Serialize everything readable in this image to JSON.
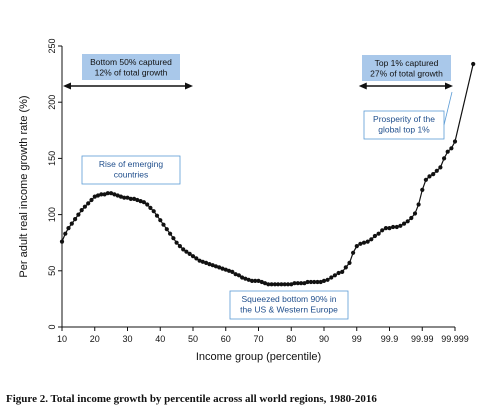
{
  "chart_data": {
    "type": "line",
    "xlabel": "Income group (percentile)",
    "ylabel": "Per adult real income growth rate (%)",
    "ylim": [
      0,
      250
    ],
    "yticks": [
      0,
      50,
      100,
      150,
      200,
      250
    ],
    "xticks": [
      "10",
      "20",
      "30",
      "40",
      "50",
      "60",
      "70",
      "80",
      "90",
      "99",
      "99.9",
      "99.99",
      "99.999"
    ],
    "grid": false,
    "series": [
      {
        "points": [
          [
            10,
            76
          ],
          [
            11,
            83
          ],
          [
            12,
            88
          ],
          [
            13,
            92
          ],
          [
            14,
            96
          ],
          [
            15,
            100
          ],
          [
            16,
            104
          ],
          [
            17,
            107
          ],
          [
            18,
            110
          ],
          [
            19,
            113
          ],
          [
            20,
            116
          ],
          [
            21,
            117
          ],
          [
            22,
            118
          ],
          [
            23,
            118
          ],
          [
            24,
            119
          ],
          [
            25,
            119
          ],
          [
            26,
            118
          ],
          [
            27,
            117
          ],
          [
            28,
            116
          ],
          [
            29,
            115
          ],
          [
            30,
            115
          ],
          [
            31,
            114
          ],
          [
            32,
            114
          ],
          [
            33,
            113
          ],
          [
            34,
            112
          ],
          [
            35,
            111
          ],
          [
            36,
            109
          ],
          [
            37,
            106
          ],
          [
            38,
            103
          ],
          [
            39,
            99
          ],
          [
            40,
            95
          ],
          [
            41,
            91
          ],
          [
            42,
            87
          ],
          [
            43,
            83
          ],
          [
            44,
            79
          ],
          [
            45,
            75
          ],
          [
            46,
            72
          ],
          [
            47,
            69
          ],
          [
            48,
            67
          ],
          [
            49,
            65
          ],
          [
            50,
            63
          ],
          [
            51,
            61
          ],
          [
            52,
            59
          ],
          [
            53,
            58
          ],
          [
            54,
            57
          ],
          [
            55,
            56
          ],
          [
            56,
            55
          ],
          [
            57,
            54
          ],
          [
            58,
            53
          ],
          [
            59,
            52
          ],
          [
            60,
            51
          ],
          [
            61,
            50
          ],
          [
            62,
            49
          ],
          [
            63,
            47
          ],
          [
            64,
            46
          ],
          [
            65,
            44
          ],
          [
            66,
            43
          ],
          [
            67,
            42
          ],
          [
            68,
            41
          ],
          [
            69,
            41
          ],
          [
            70,
            41
          ],
          [
            71,
            40
          ],
          [
            72,
            39
          ],
          [
            73,
            38
          ],
          [
            74,
            38
          ],
          [
            75,
            38
          ],
          [
            76,
            38
          ],
          [
            77,
            38
          ],
          [
            78,
            38
          ],
          [
            79,
            38
          ],
          [
            80,
            38
          ],
          [
            81,
            39
          ],
          [
            82,
            39
          ],
          [
            83,
            39
          ],
          [
            84,
            39
          ],
          [
            85,
            40
          ],
          [
            86,
            40
          ],
          [
            87,
            40
          ],
          [
            88,
            40
          ],
          [
            89,
            40
          ],
          [
            90,
            41
          ],
          [
            91,
            42
          ],
          [
            92,
            44
          ],
          [
            93,
            46
          ],
          [
            94,
            48
          ],
          [
            95,
            49
          ],
          [
            96,
            53
          ],
          [
            97,
            57
          ],
          [
            98,
            66
          ],
          [
            99,
            72
          ],
          [
            99.1,
            74
          ],
          [
            99.2,
            75
          ],
          [
            99.3,
            76
          ],
          [
            99.4,
            78
          ],
          [
            99.5,
            81
          ],
          [
            99.6,
            83
          ],
          [
            99.7,
            86
          ],
          [
            99.8,
            88
          ],
          [
            99.9,
            88
          ],
          [
            99.91,
            89
          ],
          [
            99.92,
            89
          ],
          [
            99.93,
            90
          ],
          [
            99.94,
            92
          ],
          [
            99.95,
            94
          ],
          [
            99.96,
            97
          ],
          [
            99.97,
            101
          ],
          [
            99.98,
            109
          ],
          [
            99.99,
            122
          ],
          [
            99.991,
            131
          ],
          [
            99.992,
            134
          ],
          [
            99.993,
            136
          ],
          [
            99.994,
            139
          ],
          [
            99.995,
            142
          ],
          [
            99.996,
            150
          ],
          [
            99.997,
            156
          ],
          [
            99.998,
            159
          ],
          [
            99.999,
            165
          ],
          [
            99.9995,
            234
          ]
        ]
      }
    ],
    "annotations": [
      {
        "name": "bottom-50",
        "lines": [
          "Bottom 50% captured",
          "12% of total growth"
        ]
      },
      {
        "name": "top-1",
        "lines": [
          "Top 1% captured",
          "27% of total growth"
        ]
      },
      {
        "name": "emerging",
        "lines": [
          "Rise of emerging",
          "countries"
        ]
      },
      {
        "name": "prosperity",
        "lines": [
          "Prosperity of the",
          "global top 1%"
        ]
      },
      {
        "name": "squeezed",
        "lines": [
          "Squeezed bottom 90% in",
          "the US & Western Europe"
        ]
      }
    ]
  },
  "caption": "Figure 2.  Total income growth by percentile across all world regions, 1980-2016",
  "colors": {
    "line": "#111111",
    "annotation_fill": "#a9c8ea",
    "annotation_text": "#1f4e8c",
    "annotation_border": "#5b9bd5",
    "annotation_text_dark": "#111111"
  }
}
